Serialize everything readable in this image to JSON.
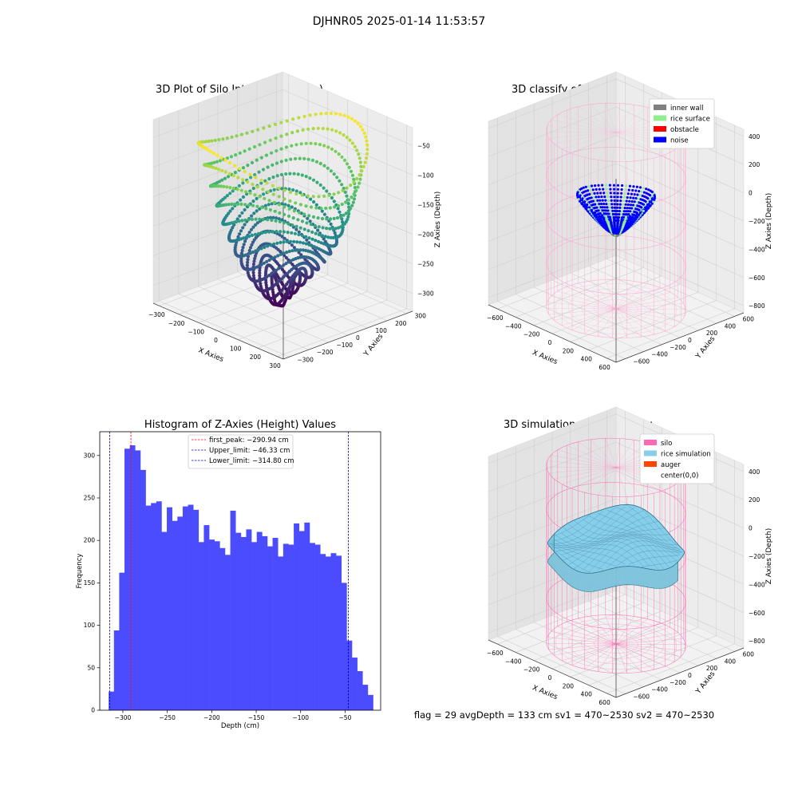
{
  "figure": {
    "suptitle": "DJHNR05 2025-01-14 11:53:57",
    "status_line": "flag = 29  avgDepth = 133 cm  sv1 = 470~2530  sv2 = 470~2530"
  },
  "chart_data": [
    {
      "type": "scatter",
      "projection": "3d",
      "title": "3D Plot of Silo Interior(row data)",
      "xlabel": "X Axies",
      "ylabel": "Y Axies",
      "zlabel": "Z Axies (Depth)",
      "x_ticks": [
        -300,
        -200,
        -100,
        0,
        100,
        200,
        300
      ],
      "y_ticks": [
        -300,
        -200,
        -100,
        0,
        100,
        200,
        300
      ],
      "z_ticks": [
        -50,
        -100,
        -150,
        -200,
        -250,
        -300
      ],
      "xlim": [
        -330,
        330
      ],
      "ylim": [
        -330,
        330
      ],
      "zlim": [
        -330,
        -20
      ],
      "colormap": "viridis"
    },
    {
      "type": "scatter",
      "projection": "3d",
      "title": "3D classify of Silo Interior",
      "xlabel": "X Axies",
      "ylabel": "Y Axies",
      "zlabel": "Z Axies (Depth)",
      "x_ticks": [
        -600,
        -400,
        -200,
        0,
        200,
        400,
        600
      ],
      "y_ticks": [
        -600,
        -400,
        -200,
        0,
        200,
        400,
        600
      ],
      "z_ticks": [
        400,
        200,
        0,
        -200,
        -400,
        -600,
        -800
      ],
      "xlim": [
        -700,
        700
      ],
      "ylim": [
        -700,
        700
      ],
      "zlim": [
        -850,
        450
      ],
      "legend": {
        "placement": "upper-right",
        "entries": [
          {
            "label": "inner wall",
            "color": "#808080"
          },
          {
            "label": "rice surface",
            "color": "#90ee90"
          },
          {
            "label": "obstacle",
            "color": "#ff0000"
          },
          {
            "label": "noise",
            "color": "#0000ff"
          }
        ]
      },
      "silo_color": "#ff9ec8"
    },
    {
      "type": "bar",
      "title": "Histogram of Z-Axies (Height) Values",
      "xlabel": "Depth (cm)",
      "ylabel": "Frequency",
      "xlim": [
        -326,
        -10
      ],
      "ylim": [
        0,
        328
      ],
      "x_ticks": [
        -300,
        -250,
        -200,
        -150,
        -100,
        -50
      ],
      "y_ticks": [
        0,
        50,
        100,
        150,
        200,
        250,
        300
      ],
      "bar_color": "#4c4cff",
      "bin_start": -316,
      "bin_width": 5.95,
      "values": [
        22,
        94,
        162,
        308,
        312,
        306,
        283,
        241,
        244,
        246,
        210,
        239,
        223,
        228,
        240,
        242,
        236,
        198,
        218,
        201,
        199,
        191,
        183,
        235,
        209,
        204,
        213,
        198,
        210,
        205,
        193,
        203,
        181,
        196,
        195,
        220,
        211,
        221,
        197,
        195,
        184,
        181,
        185,
        182,
        150,
        82,
        62,
        46,
        30,
        18
      ],
      "vlines": [
        {
          "label": "first_peak: -290.94 cm",
          "x": -290.94,
          "color": "#ff0000"
        },
        {
          "label": "Upper_limit: -46.33 cm",
          "x": -46.33,
          "color": "#0000aa"
        },
        {
          "label": "Lower_limit: -314.80 cm",
          "x": -314.8,
          "color": "#0000aa"
        }
      ],
      "legend": {
        "placement": "upper-center"
      }
    },
    {
      "type": "surface",
      "projection": "3d",
      "title": "3D simulation of Silo Interior",
      "xlabel": "X Axies",
      "ylabel": "Y Axies",
      "zlabel": "Z Axies (Depth)",
      "x_ticks": [
        -600,
        -400,
        -200,
        0,
        200,
        400,
        600
      ],
      "y_ticks": [
        -600,
        -400,
        -200,
        0,
        200,
        400,
        600
      ],
      "z_ticks": [
        400,
        200,
        0,
        -200,
        -400,
        -600,
        -800
      ],
      "xlim": [
        -700,
        700
      ],
      "ylim": [
        -700,
        700
      ],
      "zlim": [
        -850,
        450
      ],
      "legend": {
        "placement": "upper-right",
        "entries": [
          {
            "label": "silo",
            "color": "#ff69b4"
          },
          {
            "label": "rice simulation",
            "color": "#87ceeb"
          },
          {
            "label": "auger",
            "color": "#ff4500"
          },
          {
            "label": "center(0,0)",
            "color": "#ffffff"
          }
        ]
      },
      "silo_color": "#ff69b4",
      "surface_color": "#87ceeb"
    }
  ]
}
